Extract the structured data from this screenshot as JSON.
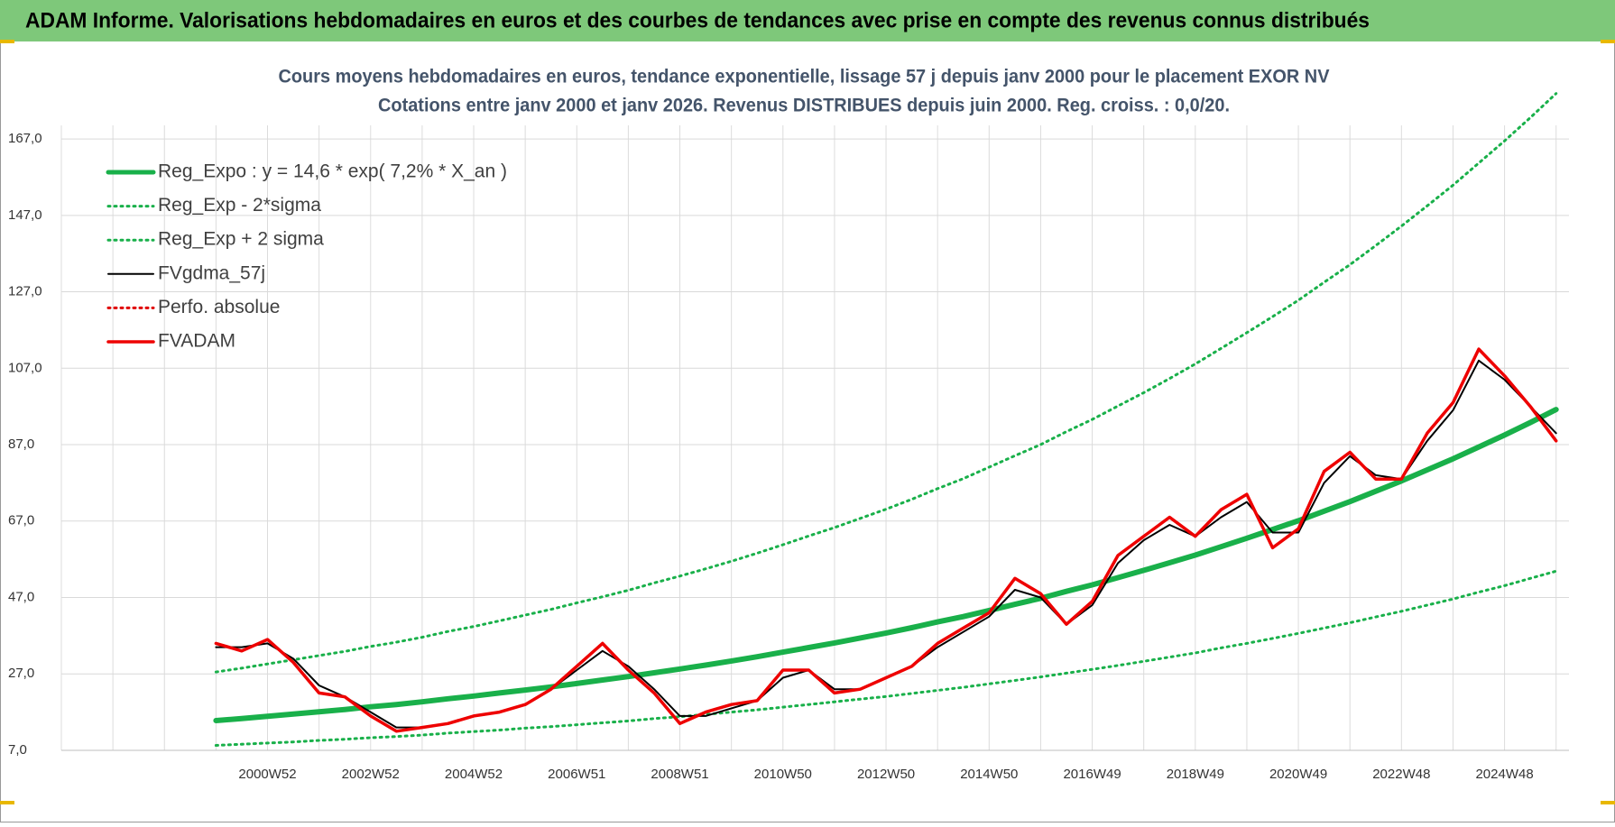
{
  "header": {
    "title": "ADAM Informe. Valorisations hebdomadaires en euros et des courbes de tendances avec prise en compte des revenus connus distribués"
  },
  "chart_data": {
    "type": "line",
    "title": "Cours moyens hebdomadaires en euros, tendance exponentielle, lissage 57 j depuis janv 2000  pour le placement EXOR NV",
    "subtitle": "Cotations entre janv 2000 et janv 2026. Revenus DISTRIBUES depuis juin 2000. Reg. croiss. : 0,0/20.",
    "categories": [
      null,
      null,
      null,
      null,
      null,
      null,
      null,
      null,
      "2000W52",
      null,
      null,
      null,
      "2002W52",
      null,
      null,
      null,
      "2004W52",
      null,
      null,
      null,
      "2006W51",
      null,
      null,
      null,
      "2008W51",
      null,
      null,
      null,
      "2010W50",
      null,
      null,
      null,
      "2012W50",
      null,
      null,
      null,
      "2014W50",
      null,
      null,
      null,
      "2016W49",
      null,
      null,
      null,
      "2018W49",
      null,
      null,
      null,
      "2020W49",
      null,
      null,
      null,
      "2022W48",
      null,
      null,
      null,
      "2024W48",
      null,
      null
    ],
    "ylim": [
      7,
      180
    ],
    "yticks": [
      {
        "value": 7,
        "label": "7,0"
      },
      {
        "value": 27,
        "label": "27,0"
      },
      {
        "value": 47,
        "label": "47,0"
      },
      {
        "value": 67,
        "label": "67,0"
      },
      {
        "value": 87,
        "label": "87,0"
      },
      {
        "value": 107,
        "label": "107,0"
      },
      {
        "value": 127,
        "label": "127,0"
      },
      {
        "value": 147,
        "label": "147,0"
      },
      {
        "value": 167,
        "label": "167,0"
      }
    ],
    "grid": true,
    "legend": "top-left",
    "series": [
      {
        "name": "Reg_Expo : y = 14,6 * exp( 7,2% *  X_an )",
        "color": "#19b04a",
        "style": "thick",
        "values": [
          null,
          null,
          null,
          null,
          null,
          null,
          14.8,
          15.3,
          15.9,
          16.5,
          17.1,
          17.7,
          18.4,
          19.0,
          19.7,
          20.5,
          21.2,
          22.0,
          22.8,
          23.6,
          24.5,
          25.4,
          26.3,
          27.3,
          28.3,
          29.3,
          30.4,
          31.5,
          32.7,
          33.9,
          35.1,
          36.4,
          37.7,
          39.1,
          40.6,
          42.0,
          43.6,
          45.2,
          46.8,
          48.6,
          50.3,
          52.2,
          54.1,
          56.1,
          58.1,
          60.3,
          62.5,
          64.8,
          67.1,
          69.6,
          72.1,
          74.8,
          77.5,
          80.4,
          83.3,
          86.4,
          89.5,
          92.8,
          96.2
        ]
      },
      {
        "name": "Reg_Exp - 2*sigma",
        "color": "#19b04a",
        "style": "dotted",
        "values": [
          null,
          null,
          null,
          null,
          null,
          null,
          8.3,
          8.6,
          8.9,
          9.2,
          9.6,
          9.9,
          10.3,
          10.6,
          11.0,
          11.5,
          11.9,
          12.3,
          12.8,
          13.2,
          13.7,
          14.2,
          14.7,
          15.3,
          15.8,
          16.4,
          17.0,
          17.6,
          18.3,
          19.0,
          19.7,
          20.4,
          21.1,
          21.9,
          22.7,
          23.5,
          24.4,
          25.3,
          26.2,
          27.2,
          28.2,
          29.2,
          30.3,
          31.4,
          32.5,
          33.8,
          35.0,
          36.3,
          37.6,
          39.0,
          40.4,
          41.9,
          43.4,
          45.0,
          46.6,
          48.4,
          50.1,
          52.0,
          53.9
        ]
      },
      {
        "name": "Reg_Exp + 2 sigma",
        "color": "#19b04a",
        "style": "dotted",
        "values": [
          null,
          null,
          null,
          null,
          null,
          null,
          27.5,
          28.5,
          29.6,
          30.7,
          31.8,
          32.9,
          34.2,
          35.3,
          36.6,
          38.1,
          39.4,
          40.9,
          42.4,
          43.9,
          45.6,
          47.2,
          48.9,
          50.8,
          52.6,
          54.5,
          56.5,
          58.6,
          60.8,
          63.1,
          65.3,
          67.7,
          70.1,
          72.7,
          75.5,
          78.1,
          81.1,
          84.1,
          87.0,
          90.4,
          93.6,
          97.1,
          100.6,
          104.3,
          108.1,
          112.2,
          116.3,
          120.5,
          124.8,
          129.5,
          134.1,
          139.1,
          144.2,
          149.5,
          154.9,
          160.7,
          166.5,
          172.6,
          178.9
        ]
      },
      {
        "name": "FVgdma_57j",
        "color": "#000000",
        "style": "solid",
        "values": [
          null,
          null,
          null,
          null,
          null,
          null,
          34,
          34,
          35,
          31,
          24,
          21,
          17,
          13,
          13,
          14,
          16,
          17,
          19,
          23,
          28,
          33,
          29,
          23,
          16,
          16,
          18,
          20,
          26,
          28,
          23,
          23,
          26,
          29,
          34,
          38,
          42,
          49,
          47,
          40,
          45,
          56,
          62,
          66,
          63,
          68,
          72,
          64,
          64,
          77,
          84,
          79,
          78,
          88,
          96,
          109,
          104,
          97,
          90
        ]
      },
      {
        "name": "Perfo. absolue",
        "color": "#e00000",
        "style": "dotted",
        "values": [
          null,
          null,
          null,
          null,
          null,
          null,
          null,
          null,
          null,
          null,
          null,
          null,
          null,
          null,
          null,
          null,
          null,
          null,
          null,
          null,
          null,
          null,
          null,
          null,
          null,
          null,
          null,
          null,
          null,
          null,
          null,
          null,
          null,
          null,
          null,
          null,
          null,
          null,
          null,
          null,
          null,
          null,
          null,
          null,
          null,
          null,
          null,
          null,
          null,
          null,
          null,
          null,
          null,
          null,
          null,
          null,
          null,
          null,
          null
        ]
      },
      {
        "name": "FVADAM",
        "color": "#ee0000",
        "style": "red",
        "values": [
          null,
          null,
          null,
          null,
          null,
          null,
          35,
          33,
          36,
          30,
          22,
          21,
          16,
          12,
          13,
          14,
          16,
          17,
          19,
          23,
          29,
          35,
          28,
          22,
          14,
          17,
          19,
          20,
          28,
          28,
          22,
          23,
          26,
          29,
          35,
          39,
          43,
          52,
          48,
          40,
          46,
          58,
          63,
          68,
          63,
          70,
          74,
          60,
          65,
          80,
          85,
          78,
          78,
          90,
          98,
          112,
          105,
          97,
          88
        ]
      }
    ]
  }
}
